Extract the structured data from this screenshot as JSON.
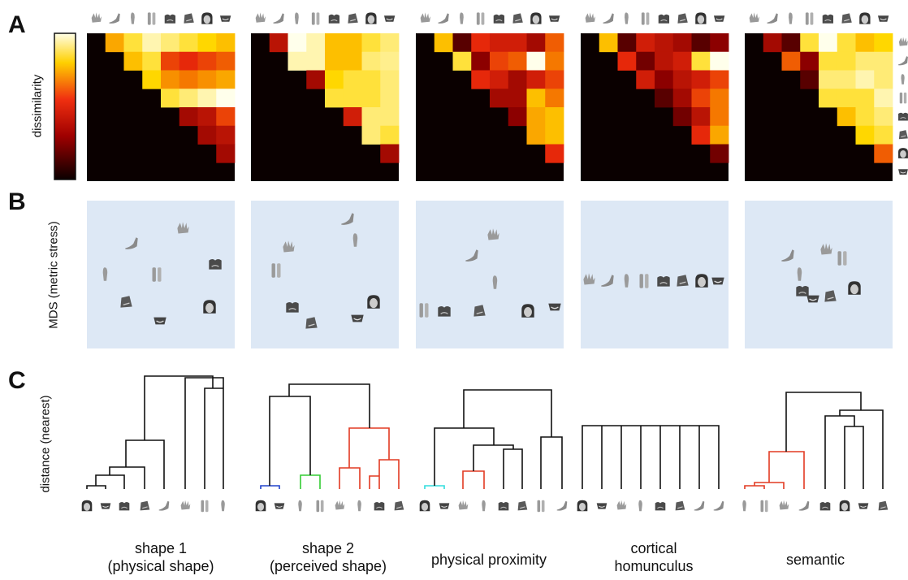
{
  "panels": {
    "a": "A",
    "b": "B",
    "c": "C"
  },
  "colorbar_label": "dissimilarity",
  "mds_label": "MDS (metric stress)",
  "dendro_label": "distance (nearest)",
  "models": [
    {
      "line1": "shape 1",
      "line2": "(physical shape)"
    },
    {
      "line1": "shape 2",
      "line2": "(perceived shape)"
    },
    {
      "line1": "physical proximity",
      "line2": ""
    },
    {
      "line1": "cortical",
      "line2": "homunculus"
    },
    {
      "line1": "semantic",
      "line2": ""
    }
  ],
  "body_parts": [
    "hand",
    "foot",
    "finger",
    "legs",
    "torso",
    "lips",
    "face",
    "mouth"
  ],
  "colors": {
    "mds_bg": "#dde8f5",
    "matrix_bg": "#0a0000",
    "dendro_black": "#111111",
    "dendro_red": "#e23a22",
    "dendro_blue": "#2244cc",
    "dendro_green": "#33cc33",
    "dendro_cyan": "#33dddd"
  },
  "chart_data": [
    {
      "type": "heatmap",
      "title": "shape 1 (physical shape)",
      "rdm_rows": [
        [
          0.7,
          0.85,
          0.95,
          0.9,
          0.85,
          0.8,
          0.75
        ],
        [
          0.75,
          0.85,
          0.5,
          0.45,
          0.5,
          0.55
        ],
        [
          0.8,
          0.65,
          0.6,
          0.65,
          0.7
        ],
        [
          0.85,
          0.9,
          0.95,
          1.0
        ],
        [
          0.3,
          0.35,
          0.5
        ],
        [
          0.3,
          0.35
        ],
        [
          0.3
        ]
      ]
    },
    {
      "type": "heatmap",
      "title": "shape 2 (perceived shape)",
      "rdm_rows": [
        [
          0.35,
          1.0,
          0.95,
          0.75,
          0.75,
          0.85,
          0.9
        ],
        [
          0.95,
          0.95,
          0.75,
          0.75,
          0.9,
          0.92
        ],
        [
          0.3,
          0.8,
          0.85,
          0.85,
          0.9
        ],
        [
          0.85,
          0.85,
          0.85,
          0.9
        ],
        [
          0.4,
          0.9,
          0.9
        ],
        [
          0.9,
          0.85
        ],
        [
          0.3
        ]
      ]
    },
    {
      "type": "heatmap",
      "title": "physical proximity",
      "rdm_rows": [
        [
          0.75,
          0.15,
          0.45,
          0.4,
          0.4,
          0.3,
          0.55
        ],
        [
          0.85,
          0.25,
          0.5,
          0.55,
          1.0,
          0.6
        ],
        [
          0.45,
          0.4,
          0.3,
          0.4,
          0.5
        ],
        [
          0.3,
          0.3,
          0.75,
          0.6
        ],
        [
          0.25,
          0.7,
          0.75
        ],
        [
          0.7,
          0.75
        ],
        [
          0.45
        ]
      ]
    },
    {
      "type": "heatmap",
      "title": "cortical homunculus",
      "rdm_rows": [
        [
          0.75,
          0.15,
          0.4,
          0.35,
          0.3,
          0.15,
          0.25
        ],
        [
          0.45,
          0.2,
          0.35,
          0.4,
          0.85,
          1.0
        ],
        [
          0.4,
          0.25,
          0.35,
          0.4,
          0.5
        ],
        [
          0.15,
          0.3,
          0.5,
          0.6
        ],
        [
          0.2,
          0.35,
          0.6
        ],
        [
          0.45,
          0.7
        ],
        [
          0.2
        ]
      ]
    },
    {
      "type": "heatmap",
      "title": "semantic",
      "rdm_rows": [
        [
          0.3,
          0.15,
          0.85,
          1.0,
          0.85,
          0.75,
          0.8
        ],
        [
          0.55,
          0.25,
          0.85,
          0.85,
          0.9,
          0.9
        ],
        [
          0.15,
          0.9,
          0.9,
          0.95,
          0.9
        ],
        [
          0.85,
          0.85,
          0.85,
          0.95
        ],
        [
          0.75,
          0.85,
          0.9
        ],
        [
          0.8,
          0.85
        ],
        [
          0.55
        ]
      ]
    }
  ]
}
